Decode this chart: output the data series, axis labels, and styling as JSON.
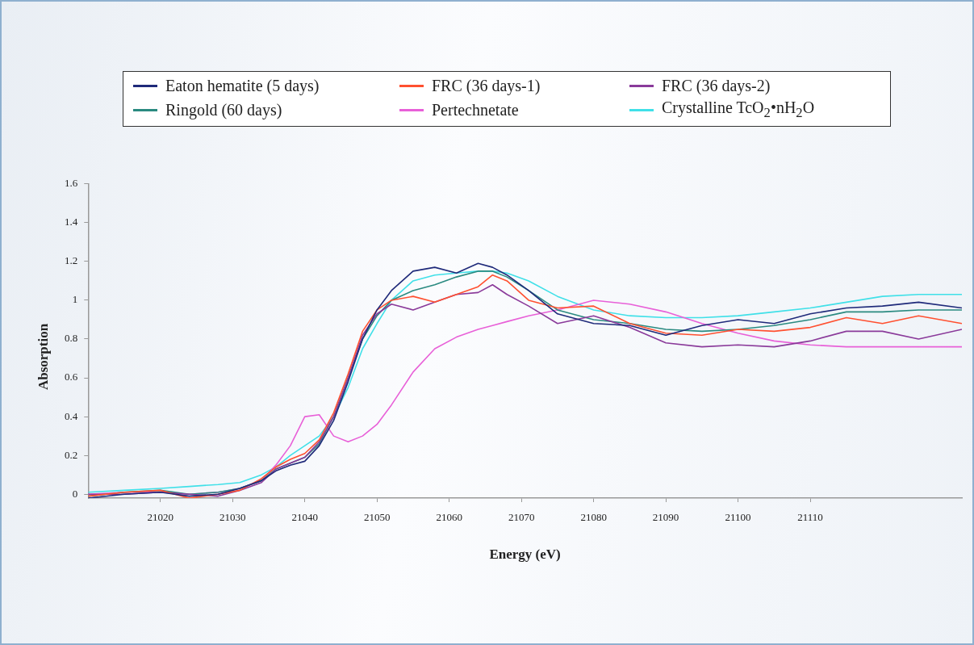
{
  "chart_data": {
    "type": "line",
    "xlabel": "Energy (eV)",
    "ylabel": "Absorption",
    "xlim": [
      21010,
      21131
    ],
    "xticks": [
      21020,
      21030,
      21040,
      21050,
      21060,
      21070,
      21080,
      21090,
      21100,
      21110
    ],
    "ylim": [
      -0.02,
      1.6
    ],
    "yticks": [
      0,
      0.2,
      0.4,
      0.6,
      0.8,
      1,
      1.2,
      1.4,
      1.6
    ],
    "legend": "top",
    "marker": "none",
    "line_style": "solid",
    "x": [
      21010,
      21015,
      21020,
      21024,
      21028,
      21031,
      21034,
      21036,
      21038,
      21040,
      21042,
      21044,
      21046,
      21048,
      21050,
      21052,
      21055,
      21058,
      21061,
      21064,
      21066,
      21068,
      21071,
      21075,
      21080,
      21085,
      21090,
      21095,
      21100,
      21105,
      21110,
      21115,
      21120,
      21125,
      21131
    ],
    "series": [
      {
        "name": "Eaton hematite (5 days)",
        "color": "#1f2a7a",
        "values": [
          -0.02,
          0,
          0.01,
          -0.01,
          0,
          0.03,
          0.07,
          0.12,
          0.15,
          0.17,
          0.25,
          0.38,
          0.58,
          0.8,
          0.95,
          1.05,
          1.15,
          1.17,
          1.14,
          1.19,
          1.17,
          1.13,
          1.05,
          0.93,
          0.88,
          0.87,
          0.82,
          0.87,
          0.9,
          0.88,
          0.93,
          0.96,
          0.97,
          0.99,
          0.96
        ]
      },
      {
        "name": "FRC (36 days-1)",
        "color": "#ff5030",
        "values": [
          -0.01,
          0.01,
          0.02,
          -0.02,
          0,
          0.02,
          0.08,
          0.14,
          0.18,
          0.21,
          0.28,
          0.42,
          0.62,
          0.84,
          0.95,
          1.0,
          1.02,
          0.99,
          1.03,
          1.07,
          1.13,
          1.1,
          1.0,
          0.96,
          0.97,
          0.88,
          0.83,
          0.82,
          0.85,
          0.84,
          0.86,
          0.91,
          0.88,
          0.92,
          0.88
        ]
      },
      {
        "name": "FRC (36 days-2)",
        "color": "#8a3a9a",
        "values": [
          0,
          0,
          0.01,
          0,
          -0.01,
          0.02,
          0.06,
          0.13,
          0.16,
          0.19,
          0.27,
          0.4,
          0.6,
          0.82,
          0.93,
          0.98,
          0.95,
          0.99,
          1.03,
          1.04,
          1.08,
          1.03,
          0.97,
          0.88,
          0.92,
          0.86,
          0.78,
          0.76,
          0.77,
          0.76,
          0.79,
          0.84,
          0.84,
          0.8,
          0.85
        ]
      },
      {
        "name": "Ringold (60 days)",
        "color": "#2a8a80",
        "values": [
          -0.01,
          0.01,
          0.02,
          0,
          0.01,
          0.03,
          0.07,
          0.13,
          0.16,
          0.19,
          0.26,
          0.4,
          0.6,
          0.8,
          0.92,
          1.0,
          1.05,
          1.08,
          1.12,
          1.15,
          1.15,
          1.12,
          1.05,
          0.95,
          0.9,
          0.88,
          0.85,
          0.84,
          0.85,
          0.87,
          0.9,
          0.94,
          0.94,
          0.95,
          0.95
        ]
      },
      {
        "name": "Pertechnetate",
        "color": "#e860d8",
        "values": [
          0,
          0.01,
          0.01,
          0,
          0.01,
          0.03,
          0.07,
          0.15,
          0.25,
          0.4,
          0.41,
          0.3,
          0.27,
          0.3,
          0.36,
          0.46,
          0.63,
          0.75,
          0.81,
          0.85,
          0.87,
          0.89,
          0.92,
          0.95,
          1.0,
          0.98,
          0.94,
          0.88,
          0.83,
          0.79,
          0.77,
          0.76,
          0.76,
          0.76,
          0.76
        ]
      },
      {
        "name": "Crystalline TcO$_{2}$•nH$_{2}$O",
        "color": "#40e0e8",
        "values": [
          0.01,
          0.02,
          0.03,
          0.04,
          0.05,
          0.06,
          0.1,
          0.14,
          0.2,
          0.25,
          0.3,
          0.4,
          0.55,
          0.75,
          0.88,
          1.0,
          1.1,
          1.13,
          1.14,
          1.15,
          1.15,
          1.14,
          1.1,
          1.02,
          0.95,
          0.92,
          0.91,
          0.91,
          0.92,
          0.94,
          0.96,
          0.99,
          1.02,
          1.03,
          1.03
        ]
      }
    ]
  }
}
